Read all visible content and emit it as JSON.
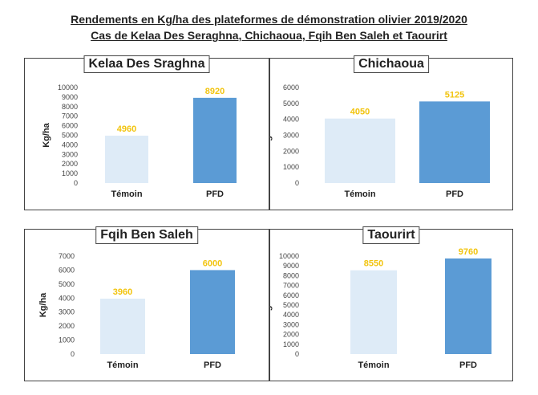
{
  "title": {
    "line1": "Rendements en Kg/ha des plateformes de démonstration olivier 2019/2020",
    "line2": "Cas de Kelaa Des Seraghna, Chichaoua, Fqih Ben Saleh et Taourirt"
  },
  "colors": {
    "temoin_bar": "#deebf7",
    "pfd_bar": "#5b9bd5",
    "data_label": "#f2c40f"
  },
  "chart_data": [
    {
      "type": "bar",
      "title": "Kelaa Des Sraghna",
      "categories": [
        "Témoin",
        "PFD"
      ],
      "values": [
        4960,
        8920
      ],
      "ylabel": "Kg/ha",
      "ylim": [
        0,
        10000
      ],
      "yticks": [
        0,
        1000,
        2000,
        3000,
        4000,
        5000,
        6000,
        7000,
        8000,
        9000,
        10000
      ],
      "grid": false
    },
    {
      "type": "bar",
      "title": "Chichaoua",
      "categories": [
        "Témoin",
        "PFD"
      ],
      "values": [
        4050,
        5125
      ],
      "ylabel": "Kg/ha",
      "ylim": [
        0,
        6000
      ],
      "yticks": [
        0,
        1000,
        2000,
        3000,
        4000,
        5000,
        6000
      ],
      "grid": false
    },
    {
      "type": "bar",
      "title": "Fqih Ben Saleh",
      "categories": [
        "Témoin",
        "PFD"
      ],
      "values": [
        3960,
        6000
      ],
      "ylabel": "Kg/ha",
      "ylim": [
        0,
        7000
      ],
      "yticks": [
        0,
        1000,
        2000,
        3000,
        4000,
        5000,
        6000,
        7000
      ],
      "grid": false
    },
    {
      "type": "bar",
      "title": "Taourirt",
      "categories": [
        "Témoin",
        "PFD"
      ],
      "values": [
        8550,
        9760
      ],
      "ylabel": "Kg/ha",
      "ylim": [
        0,
        10000
      ],
      "yticks": [
        0,
        1000,
        2000,
        3000,
        4000,
        5000,
        6000,
        7000,
        8000,
        9000,
        10000
      ],
      "grid": false
    }
  ]
}
